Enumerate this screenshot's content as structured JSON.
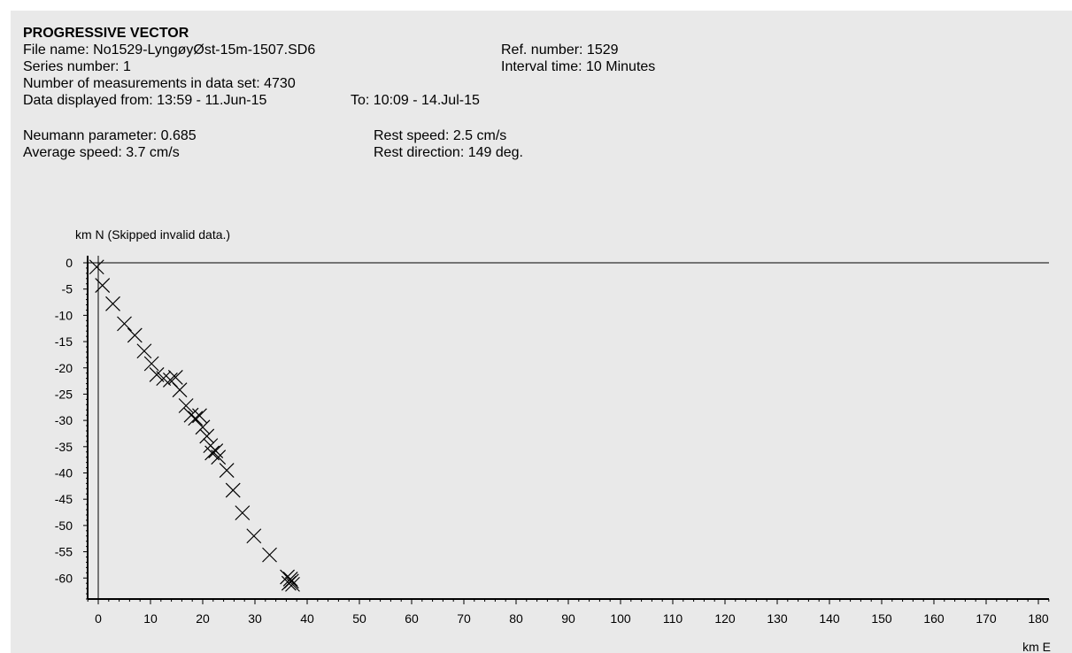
{
  "header": {
    "title": "PROGRESSIVE VECTOR",
    "file_name": "File name: No1529-LyngøyØst-15m-1507.SD6",
    "ref_number": "Ref. number: 1529",
    "series_number": "Series number: 1",
    "interval_time": "Interval time: 10 Minutes",
    "num_measurements": "Number of measurements in data set: 4730",
    "displayed_from": "Data displayed from: 13:59 - 11.Jun-15",
    "displayed_to": "To: 10:09 - 14.Jul-15"
  },
  "stats": {
    "neumann": "Neumann parameter: 0.685",
    "average_speed": "Average speed: 3.7 cm/s",
    "rest_speed": "Rest speed: 2.5 cm/s",
    "rest_direction": "Rest direction: 149 deg."
  },
  "chart_data": {
    "type": "scatter",
    "ylabel": "km N (Skipped invalid data.)",
    "xlabel": "km E",
    "xlim": [
      -2,
      183
    ],
    "ylim": [
      -64,
      0
    ],
    "x_ticks": [
      0,
      10,
      20,
      30,
      40,
      50,
      60,
      70,
      80,
      90,
      100,
      110,
      120,
      130,
      140,
      150,
      160,
      170,
      180
    ],
    "y_ticks": [
      0,
      -5,
      -10,
      -15,
      -20,
      -25,
      -30,
      -35,
      -40,
      -45,
      -50,
      -55,
      -60
    ],
    "marker": "x",
    "points": [
      {
        "x": -0.3,
        "y": -0.8
      },
      {
        "x": 0.8,
        "y": -4.3
      },
      {
        "x": 2.8,
        "y": -7.8
      },
      {
        "x": 5.0,
        "y": -11.6
      },
      {
        "x": 7.0,
        "y": -13.8
      },
      {
        "x": 8.8,
        "y": -16.8
      },
      {
        "x": 10.2,
        "y": -19.2
      },
      {
        "x": 11.2,
        "y": -21.3
      },
      {
        "x": 12.5,
        "y": -22.0
      },
      {
        "x": 13.8,
        "y": -22.3
      },
      {
        "x": 14.8,
        "y": -21.8
      },
      {
        "x": 15.6,
        "y": -24.2
      },
      {
        "x": 16.8,
        "y": -27.2
      },
      {
        "x": 17.8,
        "y": -29.0
      },
      {
        "x": 18.6,
        "y": -29.6
      },
      {
        "x": 19.4,
        "y": -29.1
      },
      {
        "x": 20.0,
        "y": -31.3
      },
      {
        "x": 20.8,
        "y": -33.0
      },
      {
        "x": 21.5,
        "y": -34.8
      },
      {
        "x": 21.8,
        "y": -36.2
      },
      {
        "x": 22.5,
        "y": -35.8
      },
      {
        "x": 23.0,
        "y": -37.0
      },
      {
        "x": 24.6,
        "y": -39.5
      },
      {
        "x": 25.8,
        "y": -43.3
      },
      {
        "x": 27.6,
        "y": -47.6
      },
      {
        "x": 29.8,
        "y": -52.0
      },
      {
        "x": 32.8,
        "y": -55.6
      },
      {
        "x": 36.2,
        "y": -59.8
      },
      {
        "x": 36.8,
        "y": -60.2
      },
      {
        "x": 37.0,
        "y": -60.6
      },
      {
        "x": 36.5,
        "y": -61.0
      },
      {
        "x": 37.2,
        "y": -61.2
      }
    ]
  }
}
